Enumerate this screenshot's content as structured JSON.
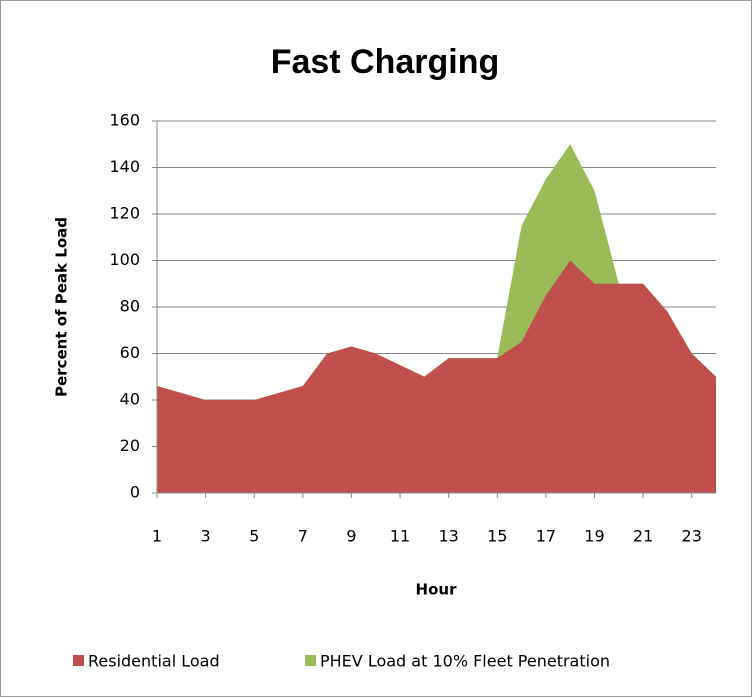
{
  "chart_data": {
    "type": "area",
    "title": "Fast Charging",
    "xlabel": "Hour",
    "ylabel": "Percent of Peak Load",
    "x": [
      1,
      2,
      3,
      4,
      5,
      6,
      7,
      8,
      9,
      10,
      11,
      12,
      13,
      14,
      15,
      16,
      17,
      18,
      19,
      20,
      21,
      22,
      23,
      24
    ],
    "xlim": [
      1,
      24
    ],
    "xticks": [
      1,
      3,
      5,
      7,
      9,
      11,
      13,
      15,
      17,
      19,
      21,
      23
    ],
    "ylim": [
      0,
      160
    ],
    "yticks": [
      0,
      20,
      40,
      60,
      80,
      100,
      120,
      140,
      160
    ],
    "grid": true,
    "legend": "bottom",
    "series": [
      {
        "name": "PHEV Load at 10% Fleet Penetration",
        "color": "#9bbb59",
        "values": [
          46,
          43,
          40,
          40,
          40,
          43,
          46,
          60,
          63,
          60,
          55,
          50,
          58,
          58,
          58,
          115,
          135,
          150,
          130,
          90,
          90,
          78,
          60,
          50
        ]
      },
      {
        "name": "Residential Load",
        "color": "#c0504d",
        "values": [
          46,
          43,
          40,
          40,
          40,
          43,
          46,
          60,
          63,
          60,
          55,
          50,
          58,
          58,
          58,
          65,
          85,
          100,
          90,
          90,
          90,
          78,
          60,
          50
        ]
      }
    ]
  }
}
